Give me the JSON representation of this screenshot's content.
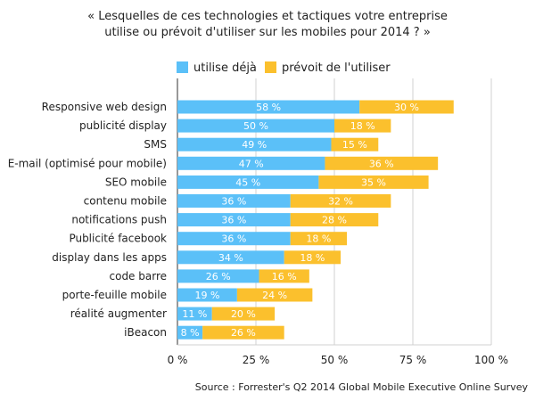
{
  "chart_data": {
    "type": "bar",
    "orientation": "horizontal",
    "stacked": true,
    "title_lines": [
      "« Lesquelles de ces technologies et tactiques votre entreprise",
      "utilise ou prévoit d'utiliser sur les mobiles pour 2014 ? »"
    ],
    "categories": [
      "Responsive web design",
      "publicité display",
      "SMS",
      "E-mail (optimisé pour mobile)",
      "SEO mobile",
      "contenu mobile",
      "notifications push",
      "Publicité facebook",
      "display dans les apps",
      "code barre",
      "porte-feuille mobile",
      "réalité augmenter",
      "iBeacon"
    ],
    "series": [
      {
        "name": "utilise déjà",
        "color": "#5bc0f8",
        "values": [
          58,
          50,
          49,
          47,
          45,
          36,
          36,
          36,
          34,
          26,
          19,
          11,
          8
        ],
        "labels": [
          "58 %",
          "50 %",
          "49 %",
          "47 %",
          "45 %",
          "36 %",
          "36 %",
          "36 %",
          "34 %",
          "26 %",
          "19 %",
          "11 %",
          "8 %"
        ]
      },
      {
        "name": "prévoit de l'utiliser",
        "color": "#fbc02d",
        "values": [
          30,
          18,
          15,
          36,
          35,
          32,
          28,
          18,
          18,
          16,
          24,
          20,
          26
        ],
        "labels": [
          "30 %",
          "18 %",
          "15 %",
          "36 %",
          "35 %",
          "32 %",
          "28 %",
          "18 %",
          "18 %",
          "16 %",
          "24 %",
          "20 %",
          "26 %"
        ]
      }
    ],
    "xlim": [
      0,
      100
    ],
    "xticks": [
      0,
      25,
      50,
      75,
      100
    ],
    "xtick_labels": [
      "0 %",
      "25 %",
      "50 %",
      "75 %",
      "100 %"
    ],
    "legend_position": "top",
    "grid": "vertical",
    "source": "Source : Forrester's Q2 2014 Global Mobile Executive Online Survey"
  }
}
